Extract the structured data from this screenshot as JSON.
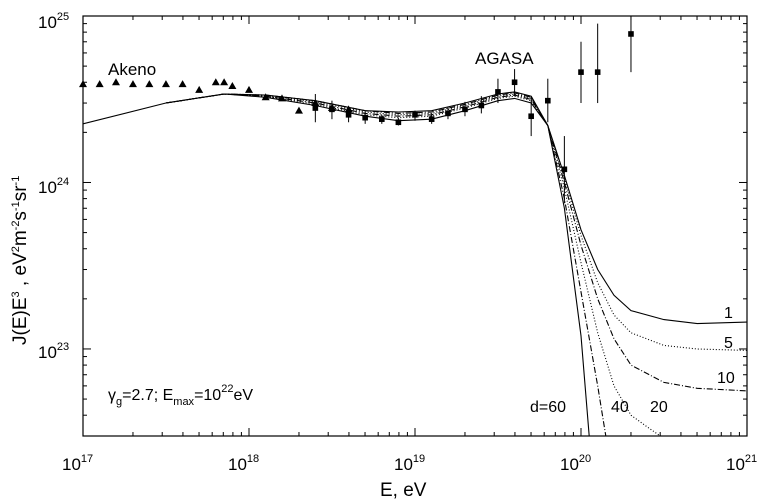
{
  "chart_data": {
    "type": "scatter",
    "title": "",
    "xlabel": "E, eV",
    "ylabel": {
      "base": "J(E)E",
      "sup1": "3",
      "rest1": " , eV",
      "sup2": "2",
      "rest2": "m",
      "sup3": "-2",
      "rest3": "s",
      "sup4": "-1",
      "rest4": "sr",
      "sup5": "-1"
    },
    "x_scale": "log",
    "y_scale": "log",
    "xlim": [
      1e+17,
      1e+21
    ],
    "ylim": [
      3e+22,
      1e+25
    ],
    "x_ticks": [
      {
        "value": 1e+17,
        "base": "10",
        "exp": "17"
      },
      {
        "value": 1e+18,
        "base": "10",
        "exp": "18"
      },
      {
        "value": 1e+19,
        "base": "10",
        "exp": "19"
      },
      {
        "value": 1e+20,
        "base": "10",
        "exp": "20"
      },
      {
        "value": 1e+21,
        "base": "10",
        "exp": "21"
      }
    ],
    "y_ticks": [
      {
        "value": 1e+23,
        "base": "10",
        "exp": "23"
      },
      {
        "value": 1e+24,
        "base": "10",
        "exp": "24"
      },
      {
        "value": 1e+25,
        "base": "10",
        "exp": "25"
      }
    ],
    "grid": false,
    "annotations": {
      "akeno": "Akeno",
      "agasa": "AGASA",
      "params": {
        "gamma": "γ",
        "gamma_sub": "g",
        "gamma_val": "=2.7;  E",
        "emax_sub": "max",
        "emax_val": "=10",
        "emax_exp": "22",
        "emax_unit": "eV"
      },
      "curve_labels": {
        "d60": "d=60",
        "d40": "40",
        "d20": "20",
        "d1": "1",
        "d5": "5",
        "d10": "10"
      }
    },
    "series": [
      {
        "name": "Akeno",
        "marker": "triangle",
        "points": [
          [
            1e+17,
            3.9e+24
          ],
          [
            1.26e+17,
            3.9e+24
          ],
          [
            1.58e+17,
            4e+24
          ],
          [
            2e+17,
            3.9e+24
          ],
          [
            2.51e+17,
            3.9e+24
          ],
          [
            3.16e+17,
            3.9e+24
          ],
          [
            3.98e+17,
            3.9e+24
          ],
          [
            5.01e+17,
            3.6e+24
          ],
          [
            6.31e+17,
            4e+24
          ],
          [
            7.08e+17,
            4e+24
          ],
          [
            7.94e+17,
            3.8e+24
          ],
          [
            1e+18,
            3.6e+24
          ],
          [
            1.26e+18,
            3.25e+24
          ],
          [
            1.58e+18,
            3.2e+24
          ],
          [
            2e+18,
            2.7e+24
          ],
          [
            2.51e+18,
            3e+24
          ],
          [
            3.16e+18,
            2.8e+24
          ],
          [
            3.98e+18,
            2.75e+24
          ]
        ]
      },
      {
        "name": "AGASA",
        "marker": "square",
        "points": [
          {
            "x": 2.51e+18,
            "y": 2.8e+24,
            "lo": 2.3e+24,
            "hi": 3.4e+24
          },
          {
            "x": 3.16e+18,
            "y": 2.75e+24,
            "lo": 2.4e+24,
            "hi": 3.1e+24
          },
          {
            "x": 3.98e+18,
            "y": 2.55e+24,
            "lo": 2.3e+24,
            "hi": 2.8e+24
          },
          {
            "x": 5.01e+18,
            "y": 2.45e+24,
            "lo": 2.25e+24,
            "hi": 2.65e+24
          },
          {
            "x": 6.31e+18,
            "y": 2.4e+24,
            "lo": 2.25e+24,
            "hi": 2.55e+24
          },
          {
            "x": 7.94e+18,
            "y": 2.3e+24,
            "lo": 2.2e+24,
            "hi": 2.45e+24
          },
          {
            "x": 1e+19,
            "y": 2.55e+24,
            "lo": 2.35e+24,
            "hi": 2.7e+24
          },
          {
            "x": 1.26e+19,
            "y": 2.4e+24,
            "lo": 2.25e+24,
            "hi": 2.6e+24
          },
          {
            "x": 1.58e+19,
            "y": 2.6e+24,
            "lo": 2.4e+24,
            "hi": 2.85e+24
          },
          {
            "x": 2e+19,
            "y": 2.75e+24,
            "lo": 2.5e+24,
            "hi": 3.05e+24
          },
          {
            "x": 2.51e+19,
            "y": 2.9e+24,
            "lo": 2.6e+24,
            "hi": 3.3e+24
          },
          {
            "x": 3.16e+19,
            "y": 3.5e+24,
            "lo": 3e+24,
            "hi": 4.2e+24
          },
          {
            "x": 3.98e+19,
            "y": 4e+24,
            "lo": 3.3e+24,
            "hi": 4.8e+24
          },
          {
            "x": 5.01e+19,
            "y": 2.5e+24,
            "lo": 1.9e+24,
            "hi": 3.3e+24
          },
          {
            "x": 6.31e+19,
            "y": 3.1e+24,
            "lo": 2.3e+24,
            "hi": 4.2e+24
          },
          {
            "x": 7.94e+19,
            "y": 1.2e+24,
            "lo": 7.5e+23,
            "hi": 1.9e+24
          },
          {
            "x": 1e+20,
            "y": 4.6e+24,
            "lo": 3e+24,
            "hi": 7e+24
          },
          {
            "x": 1.26e+20,
            "y": 4.6e+24,
            "lo": 3e+24,
            "hi": 9e+24
          },
          {
            "x": 2e+20,
            "y": 7.8e+24,
            "lo": 4.6e+24,
            "hi": 1e+25
          }
        ]
      }
    ],
    "curves": [
      {
        "label": "1",
        "dash": "none",
        "points": [
          [
            1e+17,
            2.25e+24
          ],
          [
            3.16e+17,
            3e+24
          ],
          [
            7.08e+17,
            3.4e+24
          ],
          [
            1.26e+18,
            3.25e+24
          ],
          [
            2.51e+18,
            2.9e+24
          ],
          [
            5.01e+18,
            2.5e+24
          ],
          [
            7.94e+18,
            2.35e+24
          ],
          [
            1.26e+19,
            2.4e+24
          ],
          [
            2e+19,
            2.7e+24
          ],
          [
            3.16e+19,
            3.1e+24
          ],
          [
            3.98e+19,
            3.2e+24
          ],
          [
            5.01e+19,
            3e+24
          ],
          [
            6.31e+19,
            2.2e+24
          ],
          [
            7.94e+19,
            1.1e+24
          ],
          [
            1e+20,
            5.2e+23
          ],
          [
            1.26e+20,
            3e+23
          ],
          [
            1.58e+20,
            2.1e+23
          ],
          [
            2e+20,
            1.7e+23
          ],
          [
            3.16e+20,
            1.5e+23
          ],
          [
            5.01e+20,
            1.42e+23
          ],
          [
            1e+21,
            1.45e+23
          ]
        ]
      },
      {
        "label": "5",
        "dash": "1 2",
        "points": [
          [
            3.16e+17,
            3e+24
          ],
          [
            7.08e+17,
            3.4e+24
          ],
          [
            1.26e+18,
            3.3e+24
          ],
          [
            2.51e+18,
            2.95e+24
          ],
          [
            5.01e+18,
            2.55e+24
          ],
          [
            7.94e+18,
            2.45e+24
          ],
          [
            1.26e+19,
            2.5e+24
          ],
          [
            2e+19,
            2.8e+24
          ],
          [
            3.16e+19,
            3.2e+24
          ],
          [
            3.98e+19,
            3.3e+24
          ],
          [
            5.01e+19,
            3.1e+24
          ],
          [
            6.31e+19,
            2.2e+24
          ],
          [
            7.94e+19,
            1.05e+24
          ],
          [
            1e+20,
            4.8e+23
          ],
          [
            1.26e+20,
            2.5e+23
          ],
          [
            1.58e+20,
            1.6e+23
          ],
          [
            2e+20,
            1.25e+23
          ],
          [
            3.16e+20,
            1.05e+23
          ],
          [
            5.01e+20,
            1e+23
          ],
          [
            1e+21,
            9.8e+22
          ]
        ]
      },
      {
        "label": "10",
        "dash": "6 2 1 2",
        "points": [
          [
            3.16e+17,
            3e+24
          ],
          [
            7.08e+17,
            3.4e+24
          ],
          [
            1.26e+18,
            3.3e+24
          ],
          [
            2.51e+18,
            3e+24
          ],
          [
            5.01e+18,
            2.6e+24
          ],
          [
            7.94e+18,
            2.5e+24
          ],
          [
            1.26e+19,
            2.55e+24
          ],
          [
            2e+19,
            2.85e+24
          ],
          [
            3.16e+19,
            3.25e+24
          ],
          [
            3.98e+19,
            3.35e+24
          ],
          [
            5.01e+19,
            3.15e+24
          ],
          [
            6.31e+19,
            2.2e+24
          ],
          [
            7.94e+19,
            1e+24
          ],
          [
            1e+20,
            4.2e+23
          ],
          [
            1.26e+20,
            2e+23
          ],
          [
            1.58e+20,
            1.15e+23
          ],
          [
            2e+20,
            8e+22
          ],
          [
            3.16e+20,
            6.3e+22
          ],
          [
            5.01e+20,
            5.8e+22
          ],
          [
            1e+21,
            5.6e+22
          ]
        ]
      },
      {
        "label": "20",
        "dash": "1 2",
        "points": [
          [
            3.16e+17,
            3e+24
          ],
          [
            7.08e+17,
            3.4e+24
          ],
          [
            1.26e+18,
            3.35e+24
          ],
          [
            2.51e+18,
            3.05e+24
          ],
          [
            5.01e+18,
            2.65e+24
          ],
          [
            7.94e+18,
            2.55e+24
          ],
          [
            1.26e+19,
            2.6e+24
          ],
          [
            2e+19,
            2.9e+24
          ],
          [
            3.16e+19,
            3.3e+24
          ],
          [
            3.98e+19,
            3.4e+24
          ],
          [
            5.01e+19,
            3.2e+24
          ],
          [
            6.31e+19,
            2.2e+24
          ],
          [
            7.94e+19,
            9.2e+23
          ],
          [
            1e+20,
            3.3e+23
          ],
          [
            1.26e+20,
            1.25e+23
          ],
          [
            1.58e+20,
            6e+22
          ],
          [
            2e+20,
            4e+22
          ],
          [
            2.51e+20,
            3.4e+22
          ],
          [
            3.16e+20,
            2.9e+22
          ]
        ]
      },
      {
        "label": "40",
        "dash": "6 2 1 2",
        "points": [
          [
            3.16e+17,
            3e+24
          ],
          [
            7.08e+17,
            3.4e+24
          ],
          [
            1.26e+18,
            3.35e+24
          ],
          [
            2.51e+18,
            3.1e+24
          ],
          [
            5.01e+18,
            2.7e+24
          ],
          [
            7.94e+18,
            2.6e+24
          ],
          [
            1.26e+19,
            2.65e+24
          ],
          [
            2e+19,
            2.95e+24
          ],
          [
            3.16e+19,
            3.35e+24
          ],
          [
            3.98e+19,
            3.45e+24
          ],
          [
            5.01e+19,
            3.25e+24
          ],
          [
            6.31e+19,
            2.2e+24
          ],
          [
            7.94e+19,
            8e+23
          ],
          [
            1e+20,
            2.2e+23
          ],
          [
            1.26e+20,
            6e+22
          ],
          [
            1.41e+20,
            3e+22
          ]
        ]
      },
      {
        "label": "d=60",
        "dash": "none",
        "points": [
          [
            3.16e+17,
            3e+24
          ],
          [
            7.08e+17,
            3.4e+24
          ],
          [
            1.26e+18,
            3.35e+24
          ],
          [
            2.51e+18,
            3.1e+24
          ],
          [
            5.01e+18,
            2.7e+24
          ],
          [
            7.94e+18,
            2.65e+24
          ],
          [
            1.26e+19,
            2.7e+24
          ],
          [
            2e+19,
            3e+24
          ],
          [
            3.16e+19,
            3.4e+24
          ],
          [
            3.98e+19,
            3.5e+24
          ],
          [
            5.01e+19,
            3.3e+24
          ],
          [
            6.31e+19,
            2.2e+24
          ],
          [
            7.94e+19,
            7e+23
          ],
          [
            1e+20,
            1.2e+23
          ],
          [
            1.12e+20,
            3e+22
          ]
        ]
      }
    ]
  }
}
